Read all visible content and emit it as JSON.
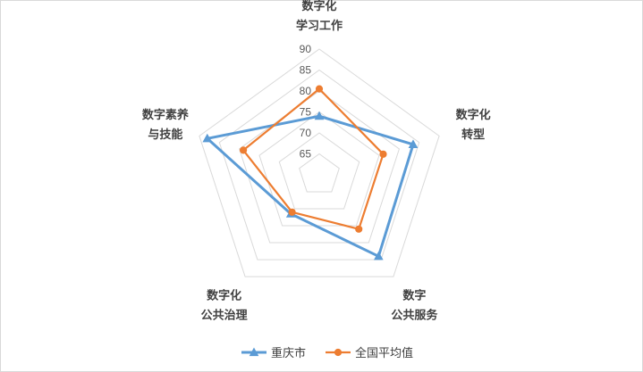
{
  "chart_data": {
    "type": "radar",
    "axes": [
      {
        "label_lines": [
          "数字化",
          "学习工作"
        ]
      },
      {
        "label_lines": [
          "数字化",
          "转型"
        ]
      },
      {
        "label_lines": [
          "数字",
          "公共服务"
        ]
      },
      {
        "label_lines": [
          "数字化",
          "公共治理"
        ]
      },
      {
        "label_lines": [
          "数字素养",
          "与技能"
        ]
      }
    ],
    "rlim": [
      60,
      90
    ],
    "ticks": [
      65,
      70,
      75,
      80,
      85,
      90
    ],
    "grid": true,
    "legend_position": "bottom",
    "series": [
      {
        "name": "重庆市",
        "color": "#5b9bd5",
        "marker": "triangle",
        "values": [
          74,
          83.5,
          84,
          71.5,
          88
        ]
      },
      {
        "name": "全国平均值",
        "color": "#ed7d31",
        "marker": "circle",
        "values": [
          80.5,
          76,
          76,
          71,
          79
        ]
      }
    ]
  }
}
